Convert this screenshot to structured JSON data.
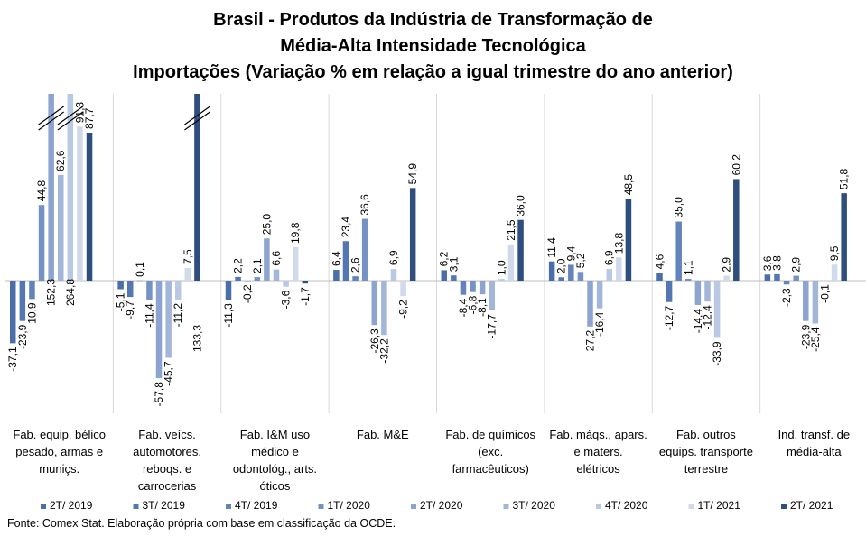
{
  "chart_data": {
    "type": "bar",
    "title_lines": [
      "Brasil - Produtos da Indústria de Transformação de",
      "Média-Alta Intensidade Tecnológica",
      "Importações (Variação % em relação a igual trimestre do ano anterior)"
    ],
    "source": "Fonte: Comex Stat. Elaboração própria com base em classificação da OCDE.",
    "categories": [
      [
        "Fab. equip. bélico",
        "pesado, armas e",
        "muniçs."
      ],
      [
        "Fab. veícs.",
        "automotores,",
        "reboqs. e",
        "carrocerias"
      ],
      [
        "Fab. I&M uso",
        "médico e",
        "odontológ., arts.",
        "óticos"
      ],
      [
        "Fab. M&E"
      ],
      [
        "Fab. de químicos",
        "(exc.",
        "farmacêuticos)"
      ],
      [
        "Fab. máqs., apars.",
        "e maters.",
        "elétricos"
      ],
      [
        "Fab. outros",
        "equips. transporte",
        "terrestre"
      ],
      [
        "Ind. transf. de",
        "média-alta"
      ]
    ],
    "series": [
      {
        "name": "2T/ 2019",
        "color": "#4a6fa8",
        "values": [
          -37.1,
          -5.1,
          -11.3,
          6.4,
          6.2,
          11.4,
          4.6,
          3.6
        ]
      },
      {
        "name": "3T/ 2019",
        "color": "#5277b2",
        "values": [
          -23.9,
          -9.7,
          2.2,
          23.4,
          3.1,
          2.0,
          -12.7,
          3.8
        ]
      },
      {
        "name": "4T/ 2019",
        "color": "#6284bb",
        "values": [
          -10.9,
          0.1,
          -0.2,
          2.6,
          -8.4,
          9.4,
          35.0,
          -2.3
        ]
      },
      {
        "name": "1T/ 2020",
        "color": "#7592c4",
        "values": [
          44.8,
          -11.4,
          2.1,
          36.6,
          -6.8,
          5.2,
          1.1,
          2.9
        ]
      },
      {
        "name": "2T/ 2020",
        "color": "#8ca4cf",
        "values": [
          152.3,
          -57.8,
          25.0,
          -26.3,
          -8.1,
          -27.2,
          -14.4,
          -23.9
        ]
      },
      {
        "name": "3T/ 2020",
        "color": "#a2b6da",
        "values": [
          62.6,
          -45.7,
          6.6,
          -32.2,
          -17.7,
          -16.4,
          -12.4,
          -25.4
        ]
      },
      {
        "name": "4T/ 2020",
        "color": "#b9c8e3",
        "values": [
          264.8,
          -11.2,
          -3.6,
          6.9,
          1.0,
          6.9,
          -33.9,
          -0.1
        ]
      },
      {
        "name": "1T/ 2021",
        "color": "#d0daeb",
        "values": [
          91.3,
          7.5,
          19.8,
          -9.2,
          21.5,
          13.8,
          2.9,
          9.5
        ]
      },
      {
        "name": "2T/ 2021",
        "color": "#2e4f7e",
        "values": [
          87.7,
          133.3,
          -1.7,
          54.9,
          36.0,
          48.5,
          60.2,
          51.8
        ]
      }
    ],
    "legend_position": "bottom",
    "grid": false
  }
}
